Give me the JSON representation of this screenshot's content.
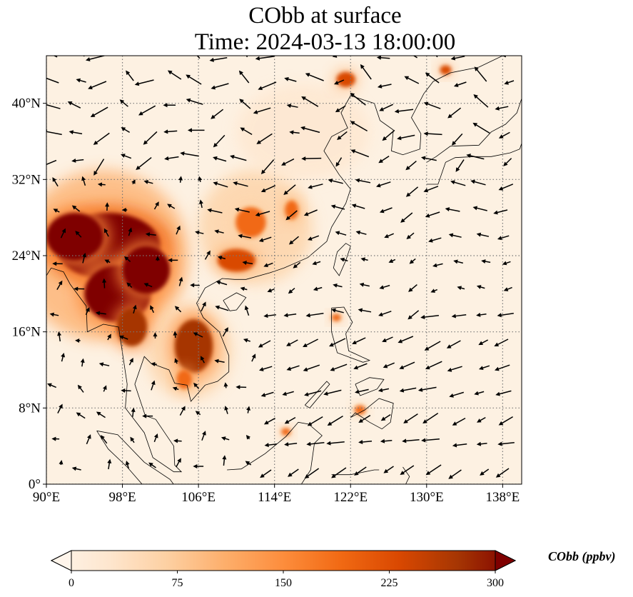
{
  "title": {
    "line1": "CObb at surface",
    "line2": "Time: 2024-03-13 18:00:00"
  },
  "map": {
    "lon_range": [
      90,
      140
    ],
    "lat_range": [
      0,
      45
    ],
    "lon_ticks": [
      "90°E",
      "98°E",
      "106°E",
      "114°E",
      "122°E",
      "130°E",
      "138°E"
    ],
    "lon_tick_values": [
      90,
      98,
      106,
      114,
      122,
      130,
      138
    ],
    "lat_ticks": [
      "0°",
      "8°N",
      "16°N",
      "24°N",
      "32°N",
      "40°N"
    ],
    "lat_tick_values": [
      0,
      8,
      16,
      24,
      32,
      40
    ],
    "gridlines": true,
    "plumes": [
      {
        "lon": 96.5,
        "lat": 25.0,
        "value": 320,
        "rx": 5.5,
        "ry": 3.5
      },
      {
        "lon": 93.0,
        "lat": 26.0,
        "value": 300,
        "rx": 3.0,
        "ry": 2.5
      },
      {
        "lon": 97.5,
        "lat": 20.0,
        "value": 300,
        "rx": 3.5,
        "ry": 3.0
      },
      {
        "lon": 100.5,
        "lat": 22.5,
        "value": 290,
        "rx": 2.5,
        "ry": 2.5
      },
      {
        "lon": 99.0,
        "lat": 16.5,
        "value": 260,
        "rx": 1.6,
        "ry": 2.0
      },
      {
        "lon": 105.5,
        "lat": 14.5,
        "value": 260,
        "rx": 2.0,
        "ry": 2.8
      },
      {
        "lon": 104.5,
        "lat": 11.0,
        "value": 200,
        "rx": 0.8,
        "ry": 1.0
      },
      {
        "lon": 110.0,
        "lat": 23.5,
        "value": 220,
        "rx": 2.0,
        "ry": 1.2
      },
      {
        "lon": 111.5,
        "lat": 27.5,
        "value": 170,
        "rx": 1.6,
        "ry": 1.6
      },
      {
        "lon": 115.8,
        "lat": 28.8,
        "value": 180,
        "rx": 0.7,
        "ry": 1.0
      },
      {
        "lon": 121.5,
        "lat": 42.5,
        "value": 230,
        "rx": 1.0,
        "ry": 0.8
      },
      {
        "lon": 132.0,
        "lat": 43.5,
        "value": 230,
        "rx": 0.6,
        "ry": 0.5
      },
      {
        "lon": 120.5,
        "lat": 17.5,
        "value": 190,
        "rx": 0.5,
        "ry": 0.4
      },
      {
        "lon": 123.0,
        "lat": 7.8,
        "value": 170,
        "rx": 0.6,
        "ry": 0.5
      },
      {
        "lon": 115.2,
        "lat": 5.5,
        "value": 180,
        "rx": 0.5,
        "ry": 0.4
      }
    ],
    "haze": [
      {
        "lon": 96.0,
        "lat": 24.0,
        "value": 110,
        "rx": 9.0,
        "ry": 9.0
      },
      {
        "lon": 112.0,
        "lat": 27.0,
        "value": 70,
        "rx": 6.0,
        "ry": 6.0
      },
      {
        "lon": 117.0,
        "lat": 37.0,
        "value": 35,
        "rx": 7.0,
        "ry": 5.0
      },
      {
        "lon": 105.0,
        "lat": 14.0,
        "value": 90,
        "rx": 4.5,
        "ry": 5.0
      }
    ]
  },
  "colorbar": {
    "min": 0,
    "max": 300,
    "ticks": [
      "0",
      "75",
      "150",
      "225",
      "300"
    ],
    "tick_values": [
      0,
      75,
      150,
      225,
      300
    ],
    "label": "CObb (ppbv)",
    "colormap": [
      "#fff5eb",
      "#fee6ce",
      "#fdd0a2",
      "#fdae6b",
      "#fd8d3c",
      "#f16913",
      "#d94801",
      "#a63603",
      "#7f0000"
    ]
  }
}
